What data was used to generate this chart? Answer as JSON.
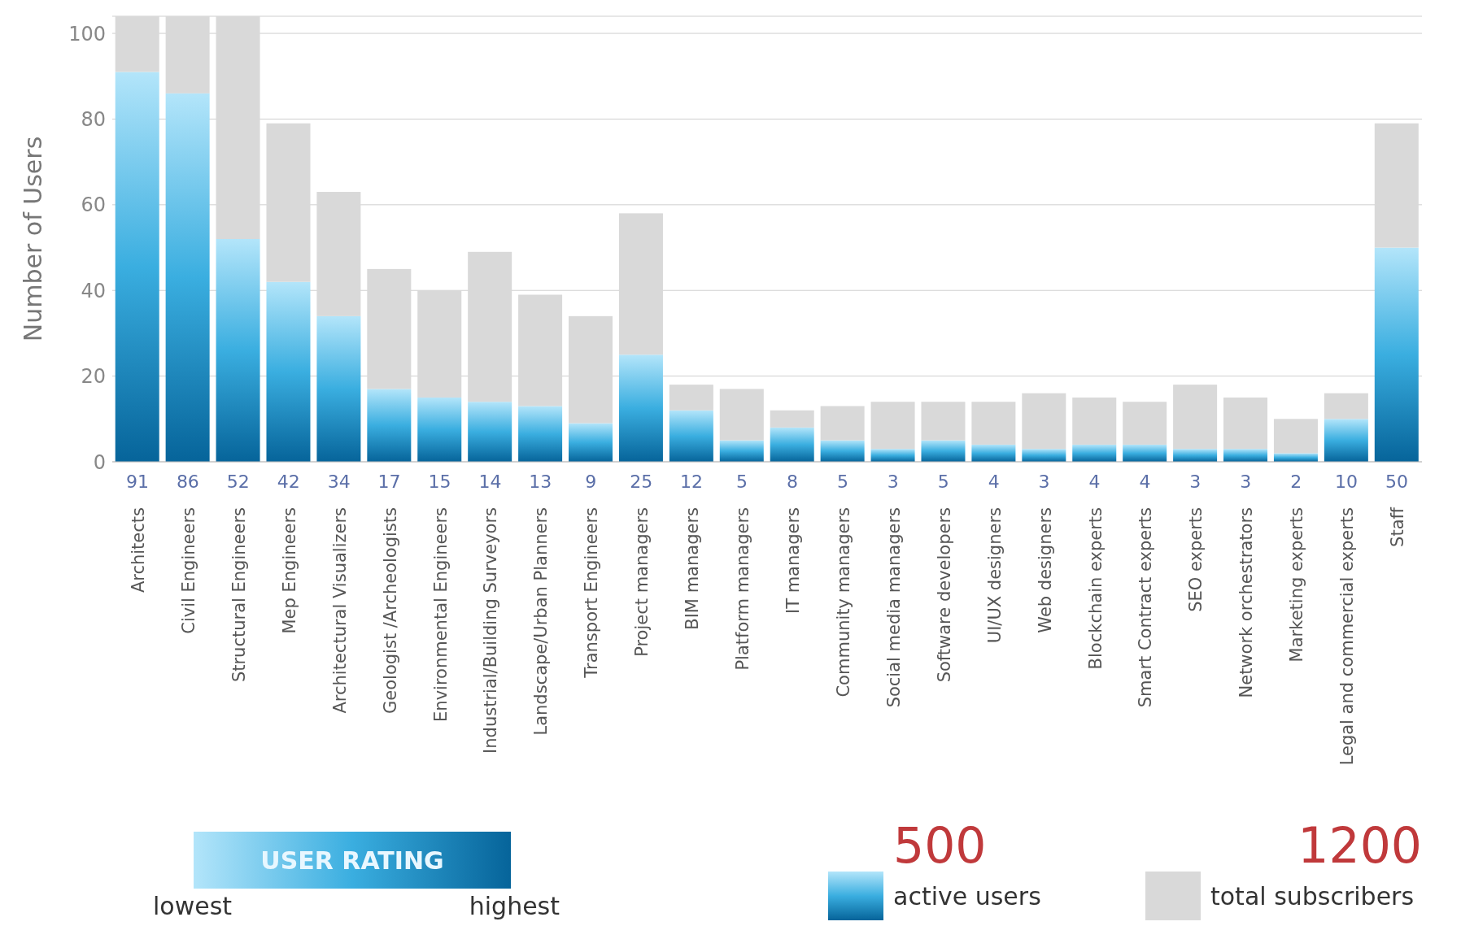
{
  "chart_data": {
    "type": "bar",
    "ylabel": "Number of Users",
    "stacked": true,
    "grid": "y",
    "legend": "bottom",
    "data_labels": false,
    "categories": [
      "Architects",
      "Civil Engineers",
      "Structural Engineers",
      "Mep Engineers",
      "Architectural Visualizers",
      "Geologist /Archeologists",
      "Environmental Engineers",
      "Industrial/Building Surveyors",
      "Landscape/Urban Planners",
      "Transport Engineers",
      "Project managers",
      "BIM managers",
      "Platform managers",
      "IT managers",
      "Community managers",
      "Social media managers",
      "Software developers",
      "UI/UX designers",
      "Web designers",
      "Blockchain experts",
      "Smart Contract experts",
      "SEO experts",
      "Network orchestrators",
      "Marketing experts",
      "Legal and commercial experts",
      "Staff"
    ],
    "series": [
      {
        "name": "active users",
        "color": "#3aaee0",
        "values": [
          91,
          86,
          52,
          42,
          34,
          17,
          15,
          14,
          13,
          9,
          25,
          12,
          5,
          8,
          5,
          3,
          5,
          4,
          3,
          4,
          4,
          3,
          3,
          2,
          10,
          50
        ],
        "value_labels": [
          "91",
          "86",
          "52",
          "42",
          "34",
          "17",
          "15",
          "14",
          "13",
          "9",
          "25",
          "12",
          "5",
          "8",
          "5",
          "3",
          "5",
          "4",
          "3",
          "4",
          "4",
          "3",
          "3",
          "2",
          "10",
          "50"
        ]
      },
      {
        "name": "total subscribers",
        "color": "#d9d9d9",
        "values": [
          13,
          18,
          52,
          37,
          29,
          28,
          25,
          35,
          26,
          25,
          33,
          6,
          12,
          4,
          8,
          11,
          9,
          10,
          13,
          11,
          10,
          15,
          12,
          8,
          6,
          29
        ]
      }
    ],
    "ylim": [
      0,
      104
    ],
    "yticks": [
      0,
      20,
      40,
      60,
      80,
      100
    ],
    "annotations": [
      "500",
      "1200",
      "USER RATING",
      "lowest",
      "highest"
    ]
  }
}
